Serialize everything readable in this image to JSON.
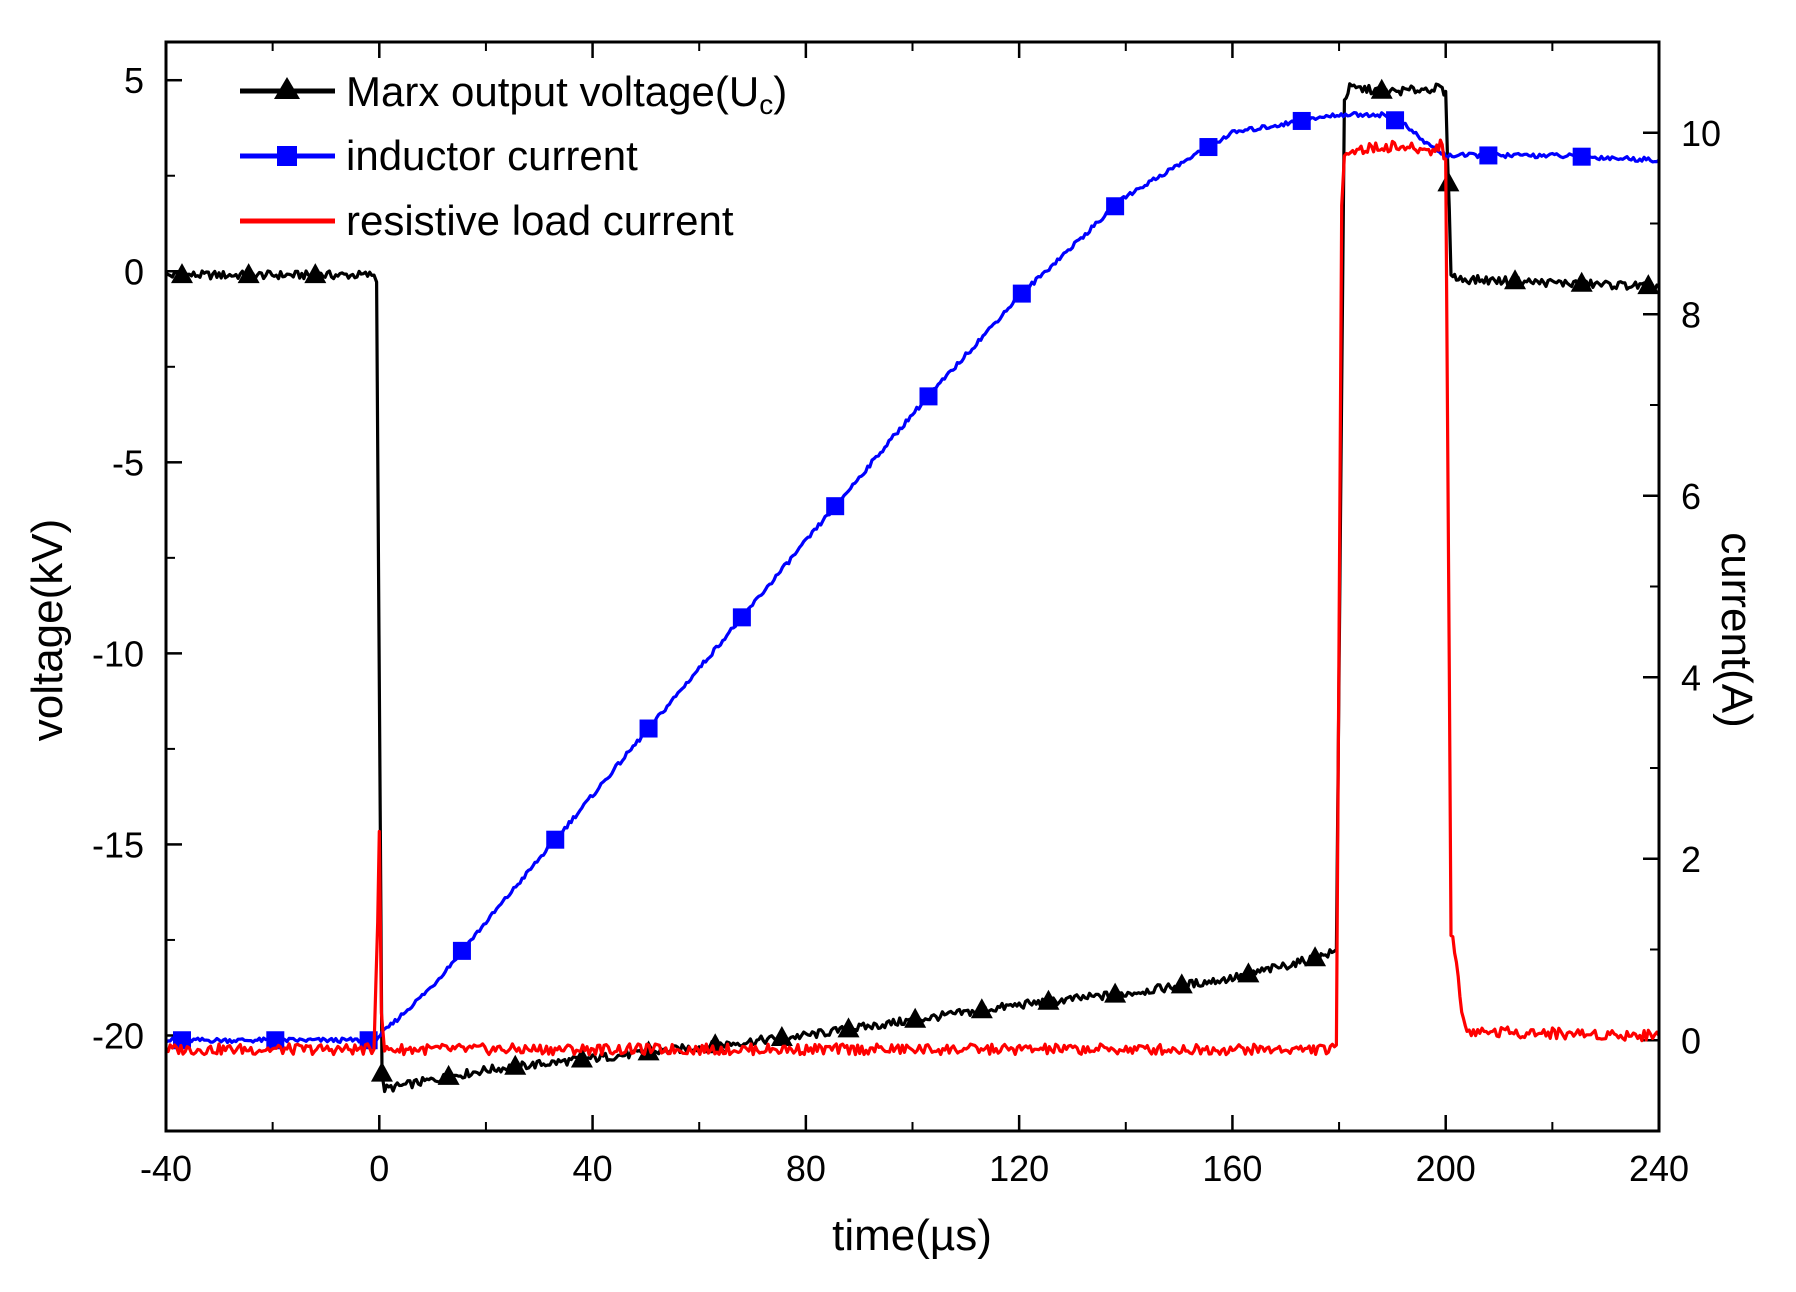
{
  "chart_data": {
    "type": "line",
    "title": "",
    "xlabel": "time(µs)",
    "ylabel_left": "voltage(kV)",
    "ylabel_right": "current(A)",
    "xlim": [
      -40,
      240
    ],
    "ylim_left": [
      -22.5,
      6
    ],
    "ylim_right": [
      -1,
      11
    ],
    "grid": false,
    "legend_position": "top-left",
    "x_ticks": [
      -40,
      0,
      40,
      80,
      120,
      160,
      200,
      240
    ],
    "y_left_ticks": [
      5,
      0,
      -5,
      -10,
      -15,
      -20
    ],
    "y_right_ticks": [
      10,
      8,
      6,
      4,
      2,
      0
    ],
    "series": [
      {
        "name": "Marx output voltage(U",
        "name_subscript": "c",
        "name_suffix": ")",
        "axis": "left",
        "color": "#000000",
        "marker": "triangle",
        "points": [
          [
            -40,
            -0.1
          ],
          [
            -1,
            -0.1
          ],
          [
            -0.5,
            -0.3
          ],
          [
            0.5,
            -21.0
          ],
          [
            1,
            -21.4
          ],
          [
            20,
            -20.9
          ],
          [
            40,
            -20.6
          ],
          [
            60,
            -20.3
          ],
          [
            80,
            -20.0
          ],
          [
            100,
            -19.6
          ],
          [
            120,
            -19.2
          ],
          [
            140,
            -18.9
          ],
          [
            160,
            -18.5
          ],
          [
            175,
            -18.0
          ],
          [
            179.5,
            -17.8
          ],
          [
            181,
            4.5
          ],
          [
            182,
            4.8
          ],
          [
            190,
            4.7
          ],
          [
            199,
            4.8
          ],
          [
            200,
            4.6
          ],
          [
            201,
            0.0
          ],
          [
            202,
            -0.2
          ],
          [
            220,
            -0.3
          ],
          [
            240,
            -0.4
          ]
        ]
      },
      {
        "name": "inductor current",
        "axis": "right",
        "color": "#0000ff",
        "marker": "square",
        "points": [
          [
            -40,
            0.0
          ],
          [
            -1,
            0.0
          ],
          [
            1,
            0.1
          ],
          [
            10,
            0.6
          ],
          [
            20,
            1.3
          ],
          [
            40,
            2.7
          ],
          [
            60,
            4.1
          ],
          [
            80,
            5.5
          ],
          [
            100,
            6.9
          ],
          [
            120,
            8.2
          ],
          [
            140,
            9.3
          ],
          [
            160,
            10.0
          ],
          [
            180,
            10.2
          ],
          [
            188,
            10.2
          ],
          [
            192,
            10.1
          ],
          [
            196,
            9.9
          ],
          [
            200,
            9.75
          ],
          [
            220,
            9.75
          ],
          [
            240,
            9.7
          ]
        ]
      },
      {
        "name": "resistive load current",
        "axis": "right",
        "color": "#ff0000",
        "marker": "none",
        "points": [
          [
            -40,
            -0.1
          ],
          [
            -1,
            -0.1
          ],
          [
            -0.3,
            1.3
          ],
          [
            0,
            2.3
          ],
          [
            0.4,
            0.3
          ],
          [
            1,
            -0.1
          ],
          [
            178,
            -0.1
          ],
          [
            179.5,
            -0.1
          ],
          [
            180.5,
            9.2
          ],
          [
            181,
            9.8
          ],
          [
            190,
            9.85
          ],
          [
            198,
            9.8
          ],
          [
            199,
            9.9
          ],
          [
            200,
            9.7
          ],
          [
            201,
            1.2
          ],
          [
            202,
            0.9
          ],
          [
            203,
            0.3
          ],
          [
            204,
            0.1
          ],
          [
            240,
            0.05
          ]
        ]
      }
    ]
  }
}
